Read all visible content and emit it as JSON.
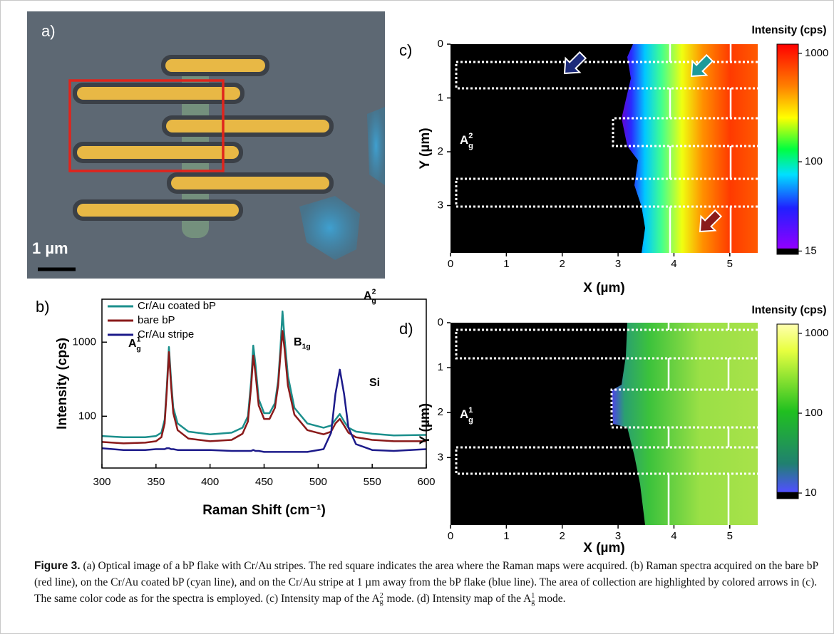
{
  "image_panel": {
    "label": "a)",
    "scale_bar": "1 µm"
  },
  "chart_data": [
    {
      "type": "line",
      "label": "b)",
      "xlabel": "Raman Shift (cm⁻¹)",
      "ylabel": "Intensity (cps)",
      "log_y": true,
      "xlim": [
        300,
        600
      ],
      "xticks": [
        300,
        350,
        400,
        450,
        500,
        550,
        600
      ],
      "ylim": [
        20,
        3800
      ],
      "yticks": [
        100,
        1000
      ],
      "legend": "upper left",
      "x": [
        300,
        320,
        340,
        350,
        355,
        358,
        360,
        362,
        364,
        366,
        370,
        380,
        400,
        420,
        430,
        435,
        438,
        440,
        442,
        445,
        450,
        455,
        460,
        463,
        465,
        467,
        469,
        472,
        478,
        490,
        505,
        512,
        516,
        520,
        524,
        528,
        535,
        550,
        570,
        600
      ],
      "series": [
        {
          "name": "Cr/Au coated bP",
          "color": "#1b8f8c",
          "values": [
            54,
            52,
            52,
            54,
            60,
            90,
            250,
            860,
            300,
            130,
            80,
            62,
            57,
            60,
            70,
            100,
            300,
            900,
            500,
            170,
            110,
            110,
            150,
            300,
            800,
            2600,
            1100,
            350,
            130,
            80,
            70,
            75,
            90,
            107,
            85,
            70,
            62,
            58,
            55,
            56
          ]
        },
        {
          "name": "bare bP",
          "color": "#8a1a1a",
          "values": [
            45,
            43,
            44,
            46,
            52,
            80,
            220,
            735,
            250,
            110,
            65,
            50,
            46,
            48,
            58,
            85,
            250,
            660,
            380,
            140,
            92,
            92,
            130,
            260,
            650,
            1420,
            800,
            260,
            105,
            65,
            57,
            62,
            80,
            92,
            75,
            60,
            52,
            48,
            46,
            46
          ]
        },
        {
          "name": "Cr/Au stripe",
          "color": "#1c1a8a",
          "values": [
            37,
            35,
            35,
            36,
            36,
            36,
            37,
            37,
            36,
            36,
            35,
            35,
            35,
            34,
            34,
            34,
            34,
            35,
            34,
            34,
            33,
            33,
            33,
            33,
            33,
            33,
            33,
            33,
            33,
            33,
            36,
            60,
            200,
            425,
            200,
            70,
            42,
            35,
            34,
            36
          ]
        }
      ],
      "annotations": [
        {
          "text": "A",
          "sup": "1",
          "sub": "g"
        },
        {
          "text": "B",
          "sub": "1g"
        },
        {
          "text": "A",
          "sup": "2",
          "sub": "g"
        },
        {
          "text": "Si"
        }
      ]
    },
    {
      "type": "map",
      "label": "c)",
      "mode_label": {
        "text": "A",
        "sup": "2",
        "sub": "g"
      },
      "xlabel": "X (µm)",
      "ylabel": "Y (µm)",
      "xlim": [
        0,
        5.5
      ],
      "xticks": [
        0,
        1,
        2,
        3,
        4,
        5
      ],
      "ylim": [
        0,
        3.88
      ],
      "yticks": [
        0,
        1,
        2,
        3
      ],
      "y_reversed": true,
      "colorbar": {
        "title": "Intensity (cps)",
        "log": true,
        "lim": [
          14,
          1215
        ],
        "ticks": [
          15,
          100,
          1000
        ]
      }
    },
    {
      "type": "map",
      "label": "d)",
      "mode_label": {
        "text": "A",
        "sup": "1",
        "sub": "g"
      },
      "xlabel": "X (µm)",
      "ylabel": "Y (µm)",
      "xlim": [
        0,
        5.5
      ],
      "xticks": [
        0,
        1,
        2,
        3,
        4,
        5
      ],
      "ylim": [
        0,
        4.5
      ],
      "yticks": [
        0,
        1,
        2,
        3
      ],
      "y_reversed": true,
      "colorbar": {
        "title": "Intensity (cps)",
        "log": true,
        "lim": [
          8.5,
          1306
        ],
        "ticks": [
          10,
          100,
          1000
        ]
      }
    }
  ],
  "caption": {
    "label": "Figure 3.",
    "parts": [
      "(a) Optical image of a bP flake with Cr/Au stripes. The red square indicates the area where the Raman maps were acquired. (b) Raman spectra acquired on the bare bP (red line), on the Cr/Au coated bP (cyan line), and on the Cr/Au stripe at 1 µm away from the bP flake (blue line). The area of collection are highlighted by colored arrows in (c). The same color code as for the spectra is employed. (c) Intensity map of the ",
      {
        "text": "A",
        "sup": "2",
        "sub": "g"
      },
      " mode. (d) Intensity map of the ",
      {
        "text": "A",
        "sup": "1",
        "sub": "g"
      },
      " mode."
    ]
  }
}
